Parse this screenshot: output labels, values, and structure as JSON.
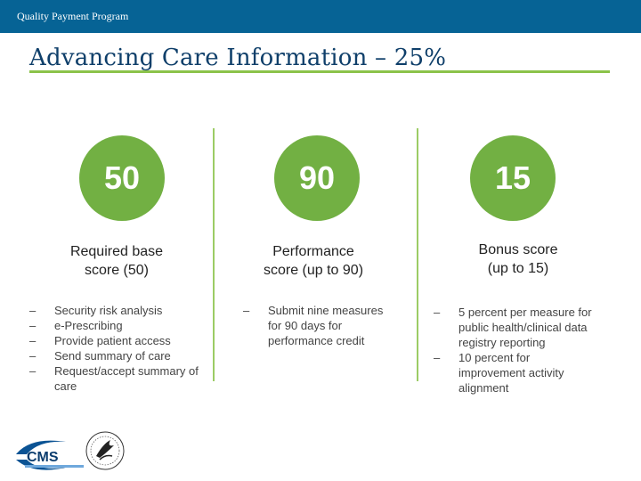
{
  "header": {
    "program": "Quality Payment Program"
  },
  "title": "Advancing Care Information – 25%",
  "columns": [
    {
      "value": "50",
      "heading_line1": "Required base",
      "heading_line2": "score (50)",
      "bullets": [
        "Security risk analysis",
        "e-Prescribing",
        "Provide patient access",
        "Send summary of care",
        "Request/accept summary of care"
      ]
    },
    {
      "value": "90",
      "heading_line1": "Performance",
      "heading_line2": "score (up to 90)",
      "bullets": [
        "Submit nine measures for 90 days for performance credit"
      ]
    },
    {
      "value": "15",
      "heading_line1": "Bonus score",
      "heading_line2": "(up to 15)",
      "bullets": [
        "5 percent per measure for public health/clinical data registry reporting",
        "10 percent for improvement activity alignment"
      ]
    }
  ],
  "bullet_marker": "–",
  "logos": {
    "cms_text": "CMS"
  },
  "colors": {
    "topbar": "#066395",
    "accent_green": "#72b043",
    "title": "#0f3f6a"
  }
}
